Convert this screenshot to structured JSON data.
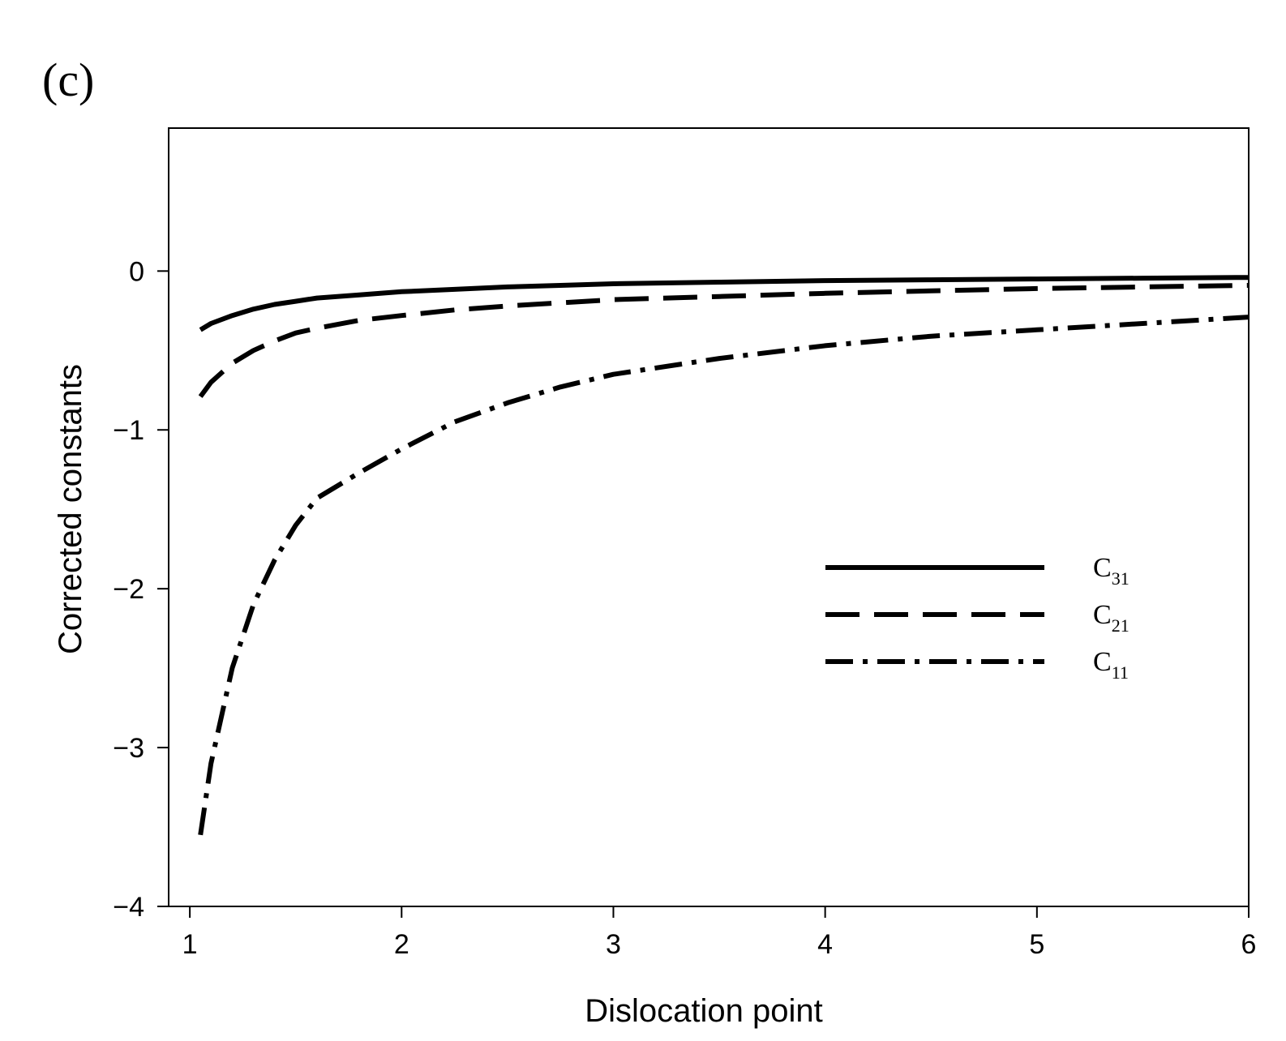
{
  "panel_label": "(c)",
  "chart_data": {
    "type": "line",
    "title": "",
    "xlabel": "Dislocation point",
    "ylabel": "Corrected constants",
    "xlim": [
      0.9,
      6
    ],
    "ylim": [
      -4,
      0.9
    ],
    "xticks": [
      1,
      2,
      3,
      4,
      5,
      6
    ],
    "xtick_labels": [
      "1",
      "2",
      "3",
      "4",
      "5",
      "6"
    ],
    "yticks": [
      -4,
      -3,
      -2,
      -1,
      0
    ],
    "ytick_labels": [
      "−4",
      "−3",
      "−2",
      "−1",
      "0"
    ],
    "grid": false,
    "legend_position": "center-right",
    "x": [
      1.05,
      1.1,
      1.2,
      1.3,
      1.4,
      1.5,
      1.6,
      1.8,
      2.0,
      2.25,
      2.5,
      2.75,
      3.0,
      3.5,
      4.0,
      4.5,
      5.0,
      5.5,
      6.0
    ],
    "series": [
      {
        "name": "C31",
        "label_main": "C",
        "label_sub": "31",
        "dash": "solid",
        "values": [
          -0.37,
          -0.33,
          -0.28,
          -0.24,
          -0.21,
          -0.19,
          -0.17,
          -0.15,
          -0.13,
          -0.115,
          -0.1,
          -0.09,
          -0.08,
          -0.07,
          -0.06,
          -0.055,
          -0.05,
          -0.045,
          -0.04
        ]
      },
      {
        "name": "C21",
        "label_main": "C",
        "label_sub": "21",
        "dash": "dashed",
        "values": [
          -0.79,
          -0.7,
          -0.58,
          -0.5,
          -0.44,
          -0.39,
          -0.36,
          -0.31,
          -0.28,
          -0.245,
          -0.22,
          -0.2,
          -0.18,
          -0.16,
          -0.14,
          -0.125,
          -0.11,
          -0.1,
          -0.09
        ]
      },
      {
        "name": "C11",
        "label_main": "C",
        "label_sub": "11",
        "dash": "dashdot",
        "values": [
          -3.55,
          -3.1,
          -2.5,
          -2.1,
          -1.82,
          -1.6,
          -1.43,
          -1.27,
          -1.12,
          -0.95,
          -0.83,
          -0.73,
          -0.65,
          -0.55,
          -0.47,
          -0.41,
          -0.37,
          -0.33,
          -0.29
        ]
      }
    ]
  }
}
